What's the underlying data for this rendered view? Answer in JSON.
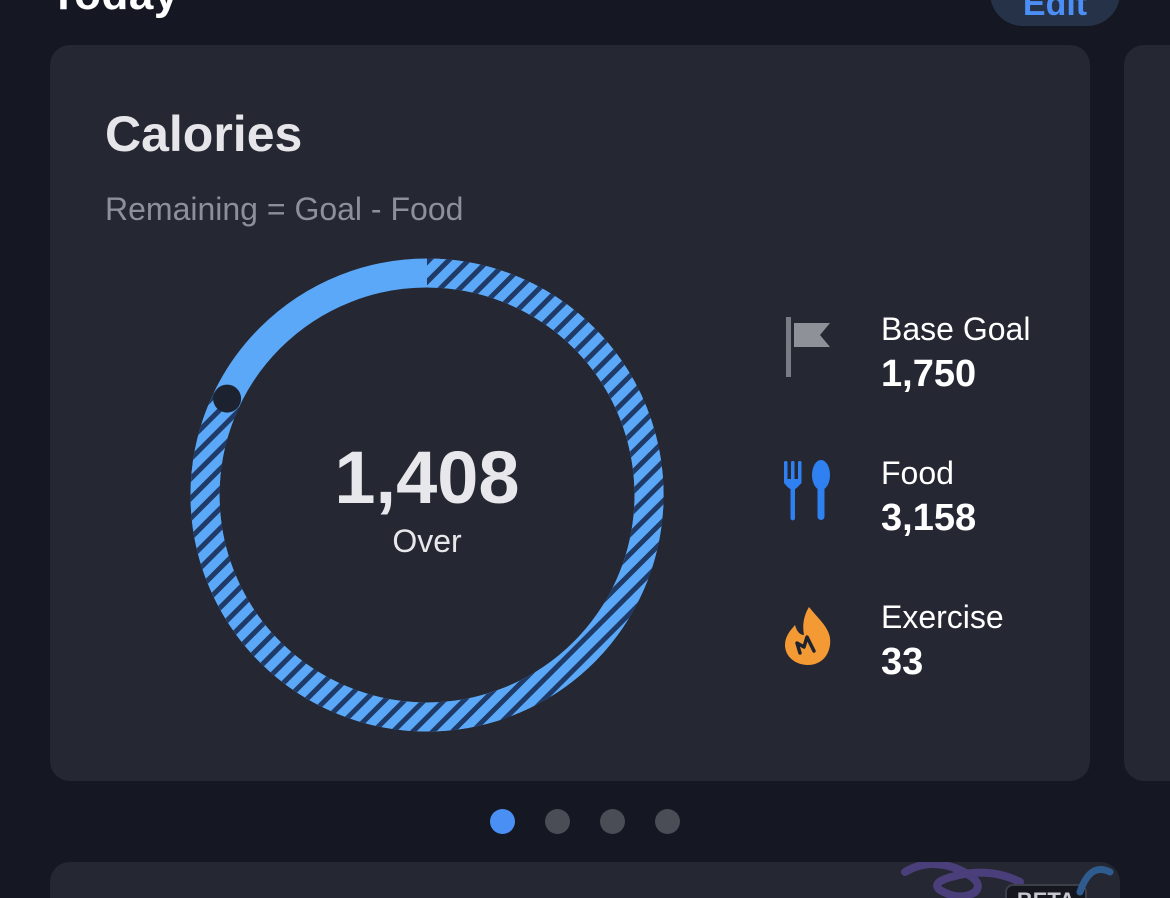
{
  "header": {
    "title": "Today",
    "edit_label": "Edit"
  },
  "calories_card": {
    "title": "Calories",
    "subtitle": "Remaining = Goal - Food",
    "ring": {
      "value": "1,408",
      "caption": "Over",
      "accent_color": "#5aa8f7",
      "stripe_color": "#1f3a66"
    },
    "stats": {
      "base_goal": {
        "label": "Base Goal",
        "value": "1,750",
        "icon": "flag-icon"
      },
      "food": {
        "label": "Food",
        "value": "3,158",
        "icon": "fork-spoon-icon"
      },
      "exercise": {
        "label": "Exercise",
        "value": "33",
        "icon": "flame-icon"
      }
    }
  },
  "pager": {
    "count": 4,
    "active_index": 0,
    "active_color": "#4a90f4"
  },
  "next_card": {
    "badge": "BETA"
  }
}
